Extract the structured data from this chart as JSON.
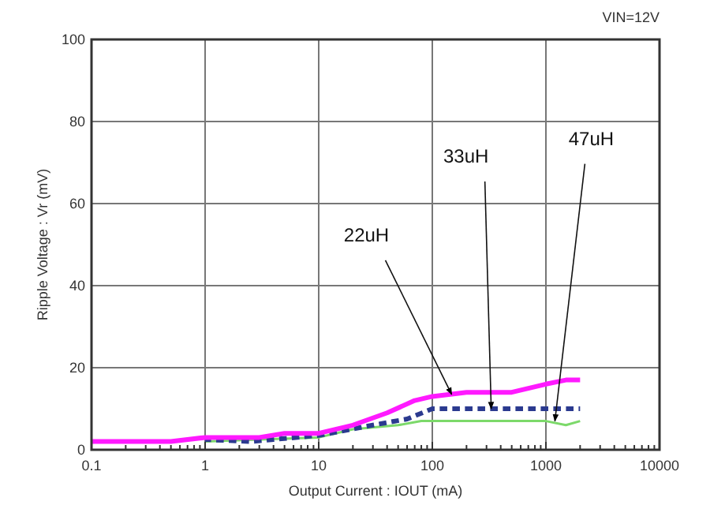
{
  "chart_data": {
    "type": "line",
    "title": "VIN=12V",
    "xlabel": "Output Current : IOUT (mA)",
    "ylabel": "Ripple Voltage : Vr (mV)",
    "log": "x",
    "grid": true,
    "marker": "none",
    "xlim": [
      0.1,
      10000
    ],
    "ylim": [
      0,
      100
    ],
    "xticks": [
      0.1,
      {
        "value": 0.2,
        "label": null
      },
      {
        "value": 0.3,
        "label": null
      },
      {
        "value": 0.4,
        "label": null
      },
      {
        "value": 0.5,
        "label": null
      },
      {
        "value": 0.6,
        "label": null
      },
      {
        "value": 0.7,
        "label": null
      },
      {
        "value": 0.8,
        "label": null
      },
      {
        "value": 0.9,
        "label": null
      },
      1,
      {
        "value": 2,
        "label": null
      },
      {
        "value": 3,
        "label": null
      },
      {
        "value": 4,
        "label": null
      },
      {
        "value": 5,
        "label": null
      },
      {
        "value": 6,
        "label": null
      },
      {
        "value": 7,
        "label": null
      },
      {
        "value": 8,
        "label": null
      },
      {
        "value": 9,
        "label": null
      },
      10,
      {
        "value": 20,
        "label": null
      },
      {
        "value": 30,
        "label": null
      },
      {
        "value": 40,
        "label": null
      },
      {
        "value": 50,
        "label": null
      },
      {
        "value": 60,
        "label": null
      },
      {
        "value": 70,
        "label": null
      },
      {
        "value": 80,
        "label": null
      },
      {
        "value": 90,
        "label": null
      },
      100,
      {
        "value": 200,
        "label": null
      },
      {
        "value": 300,
        "label": null
      },
      {
        "value": 400,
        "label": null
      },
      {
        "value": 500,
        "label": null
      },
      {
        "value": 600,
        "label": null
      },
      {
        "value": 700,
        "label": null
      },
      {
        "value": 800,
        "label": null
      },
      {
        "value": 900,
        "label": null
      },
      1000,
      {
        "value": 2000,
        "label": null
      },
      {
        "value": 3000,
        "label": null
      },
      {
        "value": 4000,
        "label": null
      },
      {
        "value": 5000,
        "label": null
      },
      {
        "value": 6000,
        "label": null
      },
      {
        "value": 7000,
        "label": null
      },
      {
        "value": 8000,
        "label": null
      },
      {
        "value": 9000,
        "label": null
      },
      10000
    ],
    "yticks": [
      0,
      20,
      40,
      60,
      80,
      100
    ],
    "series": [
      {
        "color": "#7cd96a",
        "line_style": "solid",
        "x": [
          1,
          3,
          10,
          20,
          50,
          80,
          1000,
          1500,
          2000
        ],
        "values": [
          2,
          2.5,
          3,
          5,
          6,
          7,
          7,
          6,
          7
        ]
      },
      {
        "color": "#2b3a8f",
        "line_style": "dashed",
        "x": [
          1,
          2.5,
          4,
          10,
          30,
          60,
          100,
          2000
        ],
        "values": [
          2.5,
          2,
          2.5,
          3.5,
          6,
          7.5,
          10,
          10
        ]
      },
      {
        "color": "#ff1aff",
        "line_style": "solid",
        "x": [
          0.1,
          0.5,
          1,
          3,
          5,
          10,
          20,
          40,
          70,
          100,
          200,
          500,
          1000,
          1500,
          2000
        ],
        "values": [
          2,
          2,
          3,
          3,
          4,
          4,
          6,
          9,
          12,
          13,
          14,
          14,
          16,
          17,
          17
        ]
      }
    ],
    "annotations": [
      {
        "text": "22uH",
        "x": 148,
        "y": 13.5
      },
      {
        "text": "33uH",
        "x": 330,
        "y": 10
      },
      {
        "text": "47uH",
        "x": 1200,
        "y": 7
      }
    ]
  }
}
